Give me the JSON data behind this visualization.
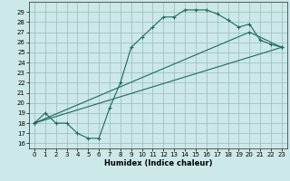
{
  "xlabel": "Humidex (Indice chaleur)",
  "bg_color": "#cce8e8",
  "grid_color": "#99bbbb",
  "line_color": "#1a6b5a",
  "xlim": [
    -0.5,
    23.5
  ],
  "ylim": [
    15.5,
    30.0
  ],
  "xticks": [
    0,
    1,
    2,
    3,
    4,
    5,
    6,
    7,
    8,
    9,
    10,
    11,
    12,
    13,
    14,
    15,
    16,
    17,
    18,
    19,
    20,
    21,
    22,
    23
  ],
  "yticks": [
    16,
    17,
    18,
    19,
    20,
    21,
    22,
    23,
    24,
    25,
    26,
    27,
    28,
    29
  ],
  "line1_x": [
    0,
    1,
    2,
    3,
    4,
    5,
    6,
    7,
    8,
    9,
    10,
    11,
    12,
    13,
    14,
    15,
    16,
    17,
    18,
    19,
    20,
    21,
    22,
    23
  ],
  "line1_y": [
    18,
    19,
    18,
    18,
    17,
    16.5,
    16.5,
    19.5,
    22,
    25.5,
    26.5,
    27.5,
    28.5,
    28.5,
    29.2,
    29.2,
    29.2,
    28.8,
    28.2,
    27.5,
    27.8,
    26.2,
    25.8,
    25.5
  ],
  "line2_x": [
    0,
    23
  ],
  "line2_y": [
    18,
    25.5
  ],
  "line3_x": [
    0,
    20,
    23
  ],
  "line3_y": [
    18,
    27.0,
    25.5
  ]
}
